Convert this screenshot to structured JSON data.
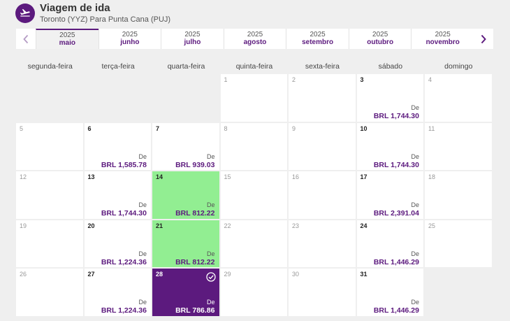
{
  "header": {
    "title": "Viagem de ida",
    "subtitle": "Toronto (YYZ) Para Punta Cana (PUJ)",
    "icon": "airplane-icon"
  },
  "months": [
    {
      "year": "2025",
      "name": "maio",
      "selected": true
    },
    {
      "year": "2025",
      "name": "junho"
    },
    {
      "year": "2025",
      "name": "julho"
    },
    {
      "year": "2025",
      "name": "agosto"
    },
    {
      "year": "2025",
      "name": "setembro"
    },
    {
      "year": "2025",
      "name": "outubro"
    },
    {
      "year": "2025",
      "name": "novembro"
    }
  ],
  "weekdays": [
    "segunda-feira",
    "terça-feira",
    "quarta-feira",
    "quinta-feira",
    "sexta-feira",
    "sábado",
    "domingo"
  ],
  "from_label": "De",
  "leading_blanks": 3,
  "colors": {
    "brand": "#5c1a7e",
    "cheap": "#92ee92"
  },
  "days": [
    {
      "d": "1"
    },
    {
      "d": "2"
    },
    {
      "d": "3",
      "price": "BRL 1,744.30"
    },
    {
      "d": "4"
    },
    {
      "d": "5"
    },
    {
      "d": "6",
      "price": "BRL 1,585.78"
    },
    {
      "d": "7",
      "price": "BRL 939.03"
    },
    {
      "d": "8"
    },
    {
      "d": "9"
    },
    {
      "d": "10",
      "price": "BRL 1,744.30"
    },
    {
      "d": "11"
    },
    {
      "d": "12"
    },
    {
      "d": "13",
      "price": "BRL 1,744.30"
    },
    {
      "d": "14",
      "price": "BRL 812.22",
      "state": "cheap"
    },
    {
      "d": "15"
    },
    {
      "d": "16"
    },
    {
      "d": "17",
      "price": "BRL 2,391.04"
    },
    {
      "d": "18"
    },
    {
      "d": "19"
    },
    {
      "d": "20",
      "price": "BRL 1,224.36"
    },
    {
      "d": "21",
      "price": "BRL 812.22",
      "state": "cheap"
    },
    {
      "d": "22"
    },
    {
      "d": "23"
    },
    {
      "d": "24",
      "price": "BRL 1,446.29"
    },
    {
      "d": "25"
    },
    {
      "d": "26"
    },
    {
      "d": "27",
      "price": "BRL 1,224.36"
    },
    {
      "d": "28",
      "price": "BRL 786.86",
      "state": "chosen"
    },
    {
      "d": "29"
    },
    {
      "d": "30"
    },
    {
      "d": "31",
      "price": "BRL 1,446.29"
    }
  ]
}
